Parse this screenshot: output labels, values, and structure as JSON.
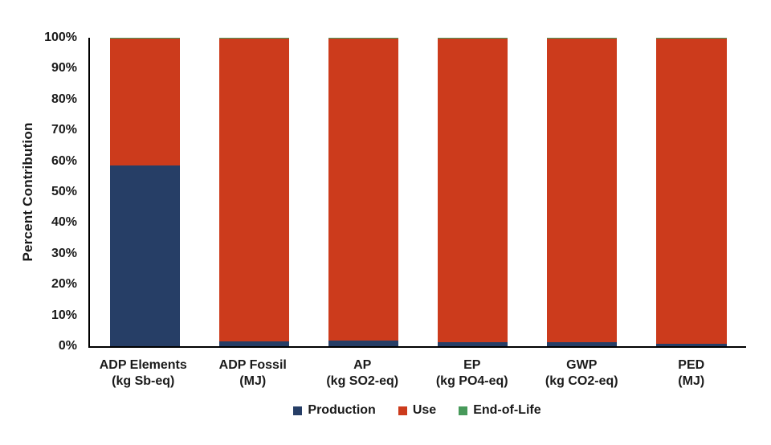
{
  "chart_data": {
    "type": "bar",
    "stacked": true,
    "percent_stacked": true,
    "title": "",
    "xlabel": "",
    "ylabel": "Percent Contribution",
    "ylim": [
      0,
      100
    ],
    "grid": false,
    "legend_position": "bottom",
    "yticks": [
      "0%",
      "10%",
      "20%",
      "30%",
      "40%",
      "50%",
      "60%",
      "70%",
      "80%",
      "90%",
      "100%"
    ],
    "categories": [
      {
        "line1": "ADP Elements",
        "line2": "(kg Sb-eq)"
      },
      {
        "line1": "ADP Fossil",
        "line2": "(MJ)"
      },
      {
        "line1": "AP",
        "line2": "(kg SO2-eq)"
      },
      {
        "line1": "EP",
        "line2": "(kg PO4-eq)"
      },
      {
        "line1": "GWP",
        "line2": "(kg CO2-eq)"
      },
      {
        "line1": "PED",
        "line2": "(MJ)"
      }
    ],
    "series": [
      {
        "name": "Production",
        "color": "#263E66",
        "values": [
          58.6,
          1.6,
          1.8,
          1.4,
          1.3,
          0.7
        ]
      },
      {
        "name": "Use",
        "color": "#CC3B1C",
        "values": [
          41.2,
          98.2,
          98.0,
          98.4,
          98.5,
          99.1
        ]
      },
      {
        "name": "End-of-Life",
        "color": "#47995A",
        "values": [
          0.2,
          0.2,
          0.2,
          0.2,
          0.2,
          0.2
        ]
      }
    ],
    "colors": {
      "axis": "#000000",
      "text": "#1a1a1a",
      "background": "#ffffff"
    }
  }
}
